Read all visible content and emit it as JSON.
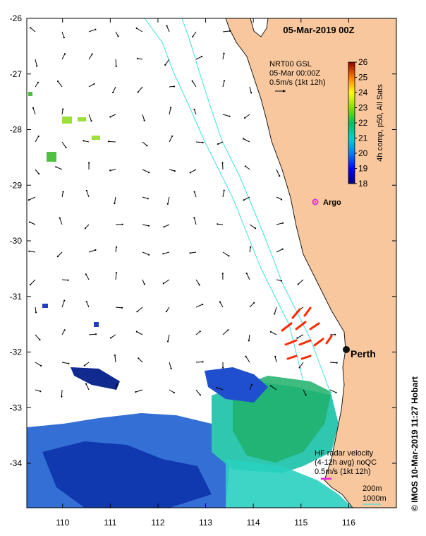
{
  "title": "05-Mar-2019 00Z",
  "gsl": {
    "line1": "NRT00 GSL",
    "line2": "05-Mar 00:00Z",
    "line3": "0.5m/s (1kt 12h)"
  },
  "colorbar": {
    "label": "4h comp, p50, All Sats",
    "ticks": [
      "26",
      "25",
      "24",
      "23",
      "22",
      "21",
      "20",
      "19",
      "18"
    ],
    "min": 18,
    "max": 26
  },
  "argo": {
    "label": "Argo"
  },
  "city": {
    "label": "Perth"
  },
  "hf": {
    "line1": "HF radar velocity",
    "line2": "(4-12h avg) noQC",
    "line3": "0.5m/s (1kt 12h)"
  },
  "isobaths": {
    "a": "200m",
    "b": "1000m"
  },
  "credit": "© IMOS 10-Mar-2019 11:27 Hobart",
  "axes": {
    "lon_ticks": [
      "110",
      "111",
      "112",
      "113",
      "114",
      "115",
      "116"
    ],
    "lat_ticks": [
      "-26",
      "-27",
      "-28",
      "-29",
      "-30",
      "-31",
      "-32",
      "-33",
      "-34"
    ],
    "lon_range": [
      109.25,
      117.0
    ],
    "lat_range": [
      -34.8,
      -26.0
    ]
  },
  "colors": {
    "land": "#f8c79d",
    "coast_line": "#1a1a1a",
    "isobath": "#40e0e0",
    "radar_vector": "#ff2a00",
    "argo": "#dd33dd",
    "perth_dot": "#111111"
  }
}
